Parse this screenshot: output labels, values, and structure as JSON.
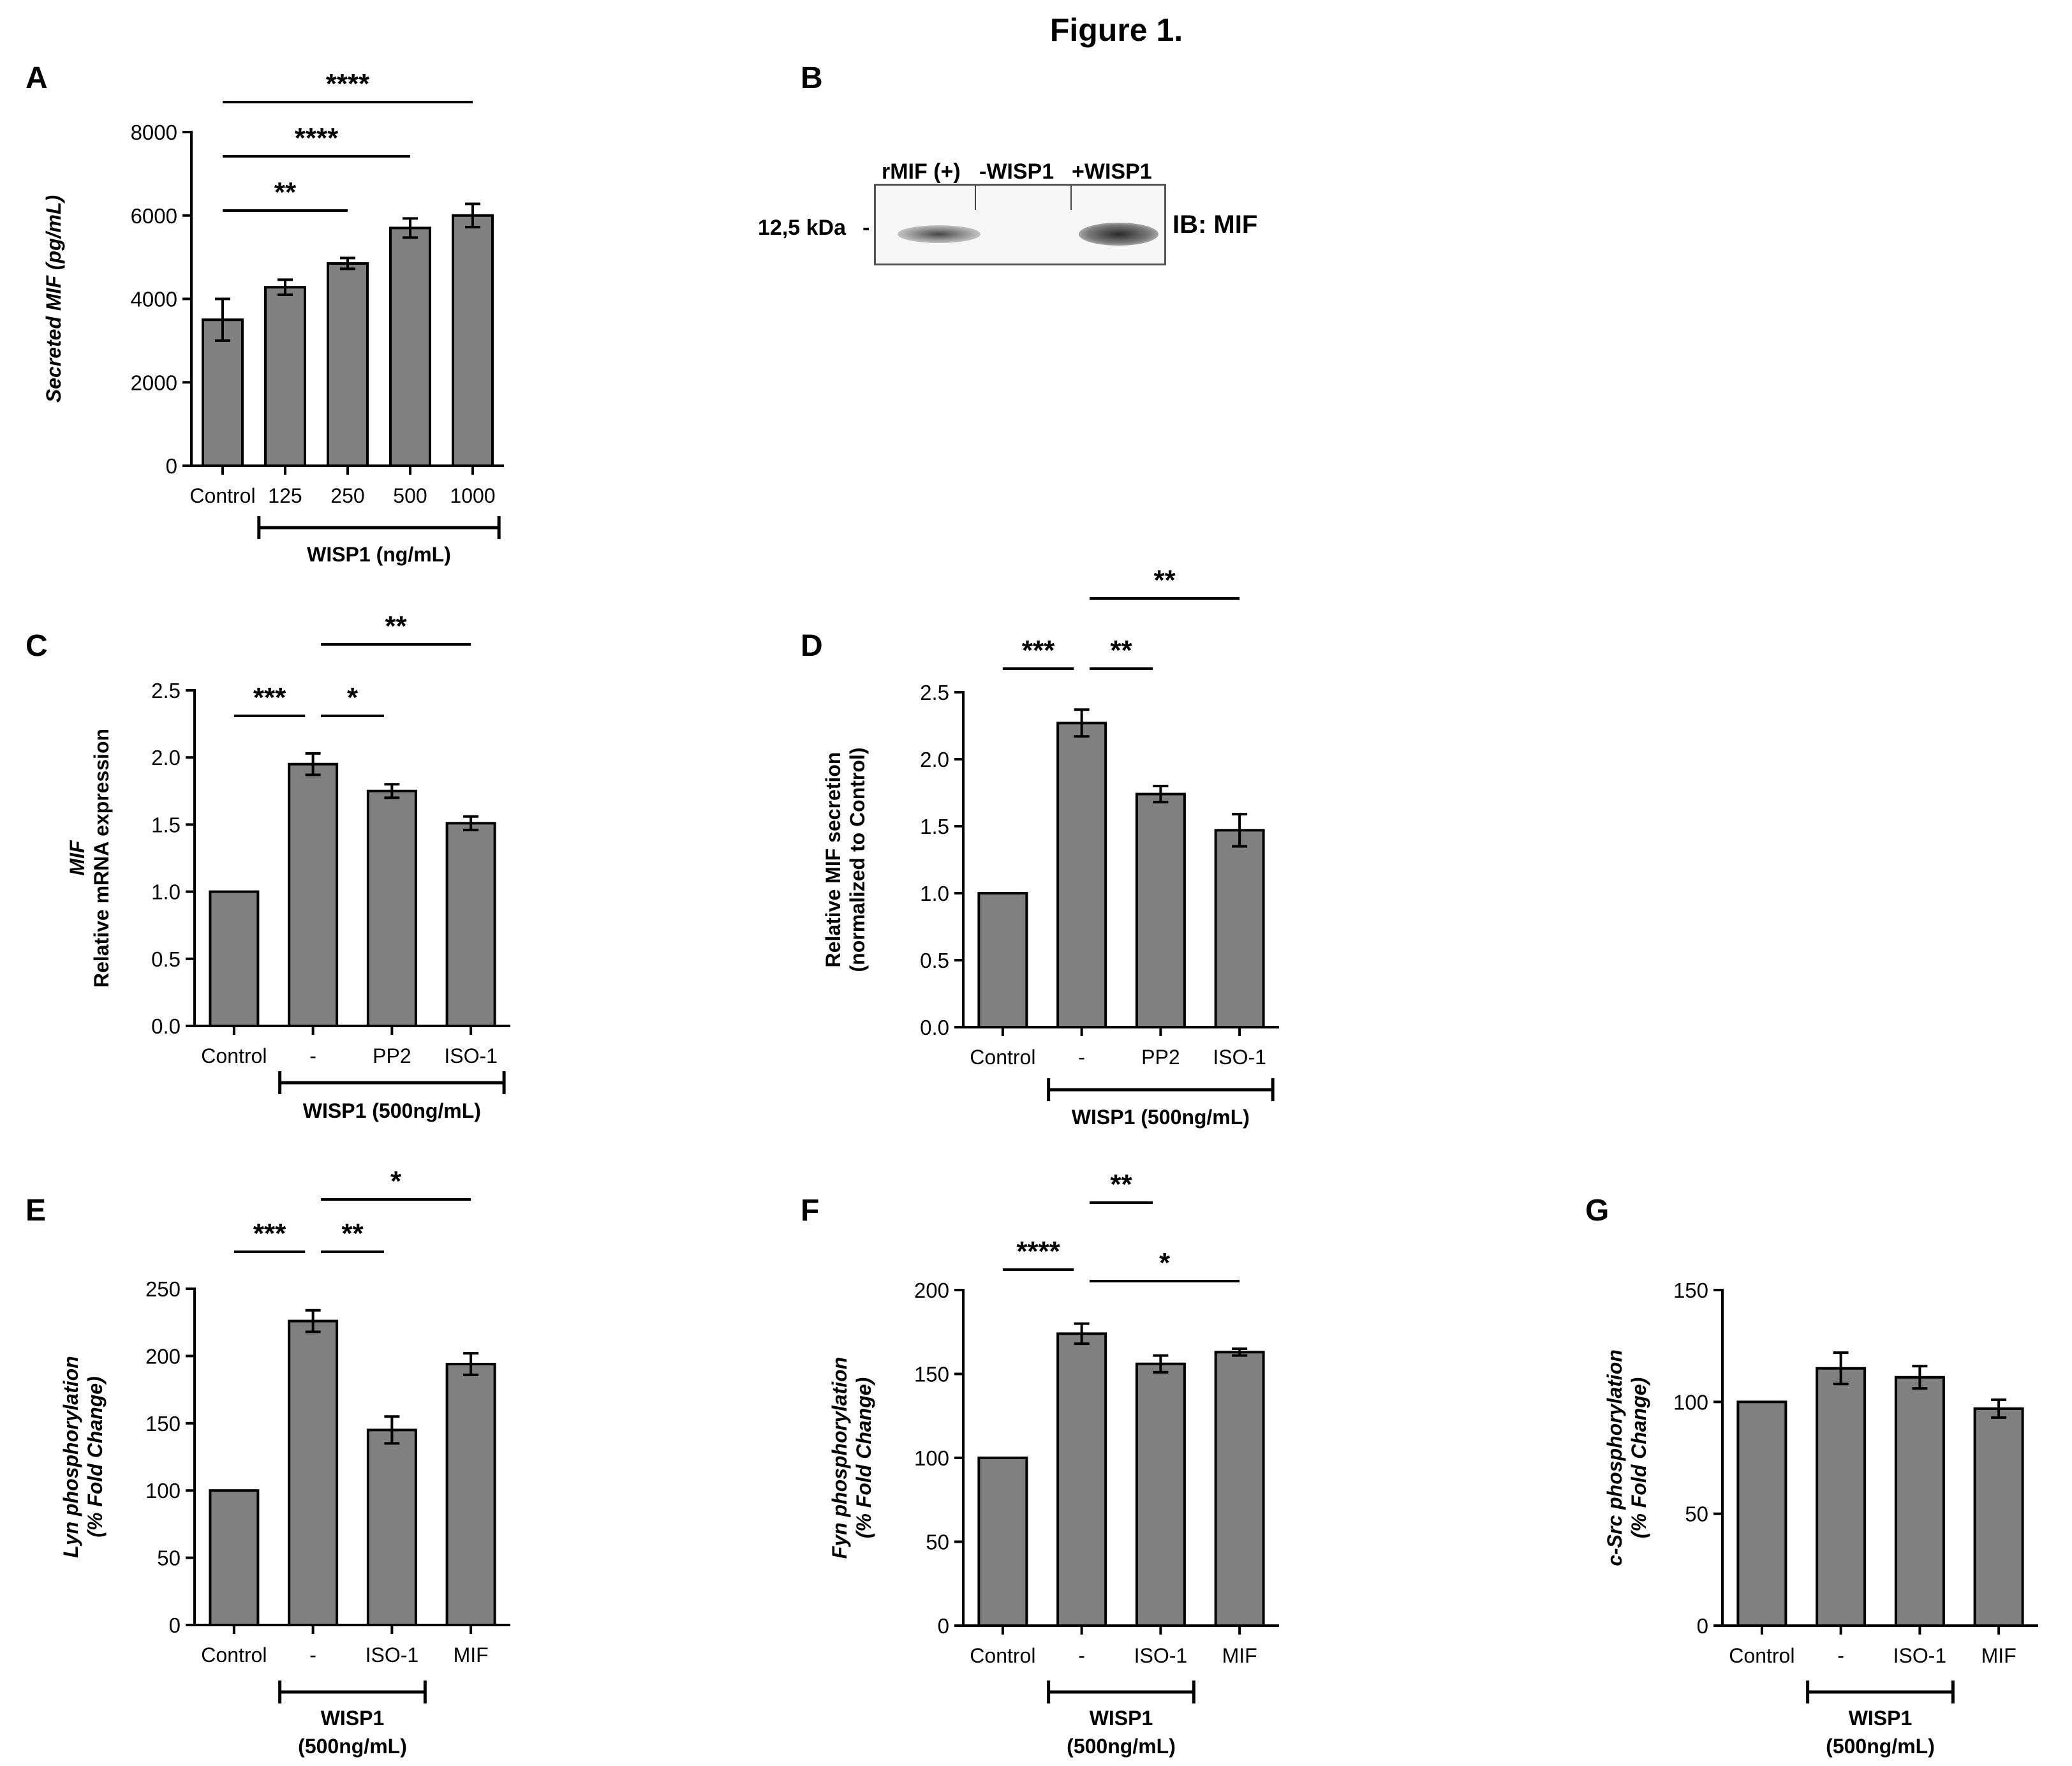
{
  "figure": {
    "title": "Figure 1."
  },
  "panel_letters": [
    "A",
    "B",
    "C",
    "D",
    "E",
    "F",
    "G"
  ],
  "western_blot": {
    "panel": "B",
    "lanes": [
      "rMIF (+)",
      "-WISP1",
      "+WISP1"
    ],
    "marker": "12,5 kDa",
    "antibody": "IB: MIF"
  },
  "chart_data": [
    {
      "panel": "A",
      "type": "bar",
      "categories": [
        "Control",
        "125",
        "250",
        "500",
        "1000"
      ],
      "values": [
        3500,
        4280,
        4850,
        5700,
        6000
      ],
      "errors": [
        500,
        180,
        130,
        230,
        280
      ],
      "ylabel": "Secreted MIF (pg/mL)",
      "ylim": [
        0,
        8000
      ],
      "yticks": [
        0,
        2000,
        4000,
        6000,
        8000
      ],
      "ytick_labels": [
        "0",
        "2000",
        "4000",
        "6000",
        "8000"
      ],
      "group_label": "WISP1 (ng/mL)",
      "group_range": [
        1,
        4
      ],
      "significance": [
        {
          "from": 0,
          "to": 2,
          "label": "**"
        },
        {
          "from": 0,
          "to": 3,
          "label": "****"
        },
        {
          "from": 0,
          "to": 4,
          "label": "****"
        }
      ]
    },
    {
      "panel": "C",
      "type": "bar",
      "categories": [
        "Control",
        "-",
        "PP2",
        "ISO-1"
      ],
      "values": [
        1.0,
        1.95,
        1.75,
        1.51
      ],
      "errors": [
        0,
        0.08,
        0.05,
        0.05
      ],
      "ylabel_lines": [
        "MIF",
        "Relative mRNA expression"
      ],
      "ylim": [
        0,
        2.5
      ],
      "yticks": [
        0,
        0.5,
        1.0,
        1.5,
        2.0,
        2.5
      ],
      "ytick_labels": [
        "0.0",
        "0.5",
        "1.0",
        "1.5",
        "2.0",
        "2.5"
      ],
      "group_label": "WISP1 (500ng/mL)",
      "group_range": [
        1,
        3
      ],
      "significance": [
        {
          "from": 0,
          "to": 1,
          "label": "***"
        },
        {
          "from": 1,
          "to": 2,
          "label": "*"
        },
        {
          "from": 1,
          "to": 3,
          "label": "**"
        }
      ]
    },
    {
      "panel": "D",
      "type": "bar",
      "categories": [
        "Control",
        "-",
        "PP2",
        "ISO-1"
      ],
      "values": [
        1.0,
        2.27,
        1.74,
        1.47
      ],
      "errors": [
        0,
        0.1,
        0.06,
        0.12
      ],
      "ylabel_lines": [
        "Relative MIF secretion",
        "(normalized to Control)"
      ],
      "ylim": [
        0,
        2.5
      ],
      "yticks": [
        0,
        0.5,
        1.0,
        1.5,
        2.0,
        2.5
      ],
      "ytick_labels": [
        "0.0",
        "0.5",
        "1.0",
        "1.5",
        "2.0",
        "2.5"
      ],
      "group_label": "WISP1 (500ng/mL)",
      "group_range": [
        1,
        3
      ],
      "significance": [
        {
          "from": 0,
          "to": 1,
          "label": "***"
        },
        {
          "from": 1,
          "to": 2,
          "label": "**"
        },
        {
          "from": 1,
          "to": 3,
          "label": "**"
        }
      ]
    },
    {
      "panel": "E",
      "type": "bar",
      "categories": [
        "Control",
        "-",
        "ISO-1",
        "MIF"
      ],
      "values": [
        100,
        226,
        145,
        194
      ],
      "errors": [
        0,
        8,
        10,
        8
      ],
      "ylabel_lines": [
        "Lyn phosphorylation",
        "(% Fold Change)"
      ],
      "ylim": [
        0,
        250
      ],
      "yticks": [
        0,
        50,
        100,
        150,
        200,
        250
      ],
      "ytick_labels": [
        "0",
        "50",
        "100",
        "150",
        "200",
        "250"
      ],
      "group_label_lines": [
        "WISP1",
        "(500ng/mL)"
      ],
      "group_range": [
        1,
        2
      ],
      "significance": [
        {
          "from": 0,
          "to": 1,
          "label": "***"
        },
        {
          "from": 1,
          "to": 2,
          "label": "**"
        },
        {
          "from": 1,
          "to": 3,
          "label": "*"
        }
      ]
    },
    {
      "panel": "F",
      "type": "bar",
      "categories": [
        "Control",
        "-",
        "ISO-1",
        "MIF"
      ],
      "values": [
        100,
        174,
        156,
        163
      ],
      "errors": [
        0,
        6,
        5,
        2
      ],
      "ylabel_lines": [
        "Fyn phosphorylation",
        "(% Fold Change)"
      ],
      "ylim": [
        0,
        200
      ],
      "yticks": [
        0,
        50,
        100,
        150,
        200
      ],
      "ytick_labels": [
        "0",
        "50",
        "100",
        "150",
        "200"
      ],
      "group_label_lines": [
        "WISP1",
        "(500ng/mL)"
      ],
      "group_range": [
        1,
        2
      ],
      "significance": [
        {
          "from": 0,
          "to": 1,
          "label": "****"
        },
        {
          "from": 1,
          "to": 2,
          "label": "**"
        },
        {
          "from": 1,
          "to": 3,
          "label": "*"
        }
      ]
    },
    {
      "panel": "G",
      "type": "bar",
      "categories": [
        "Control",
        "-",
        "ISO-1",
        "MIF"
      ],
      "values": [
        100,
        115,
        111,
        97
      ],
      "errors": [
        0,
        7,
        5,
        4
      ],
      "ylabel_lines": [
        "c-Src phosphorylation",
        "(% Fold Change)"
      ],
      "ylim": [
        0,
        150
      ],
      "yticks": [
        0,
        50,
        100,
        150
      ],
      "ytick_labels": [
        "0",
        "50",
        "100",
        "150"
      ],
      "group_label_lines": [
        "WISP1",
        "(500ng/mL)"
      ],
      "group_range": [
        1,
        2
      ],
      "significance": []
    }
  ]
}
